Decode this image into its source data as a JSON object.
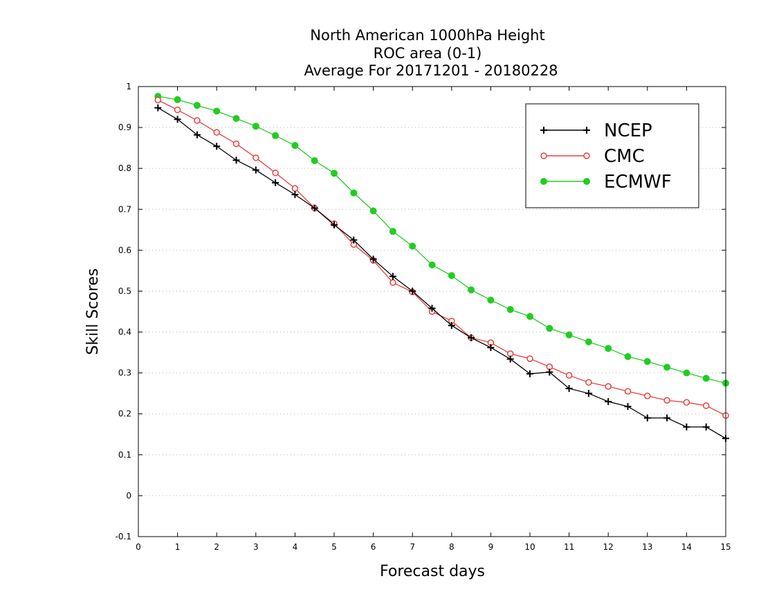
{
  "chart_data": {
    "type": "line",
    "title": [
      "North American 1000hPa Height",
      "ROC area (0-1)",
      "Average For 20171201 - 20180228"
    ],
    "xlabel": "Forecast days",
    "ylabel": "Skill Scores",
    "xlim": [
      0,
      15
    ],
    "ylim": [
      -0.1,
      1
    ],
    "xticks": [
      0,
      1,
      2,
      3,
      4,
      5,
      6,
      7,
      8,
      9,
      10,
      11,
      12,
      13,
      14,
      15
    ],
    "yticks": [
      -0.1,
      0,
      0.1,
      0.2,
      0.3,
      0.4,
      0.5,
      0.6,
      0.7,
      0.8,
      0.9,
      1
    ],
    "ytick_labels": [
      "-0.1",
      "0",
      "0.1",
      "0.2",
      "0.3",
      "0.4",
      "0.5",
      "0.6",
      "0.7",
      "0.8",
      "0.9",
      "1"
    ],
    "grid": "horizontal dotted",
    "legend_position": "top-right",
    "x": [
      0.5,
      1,
      1.5,
      2,
      2.5,
      3,
      3.5,
      4,
      4.5,
      5,
      5.5,
      6,
      6.5,
      7,
      7.5,
      8,
      8.5,
      9,
      9.5,
      10,
      10.5,
      11,
      11.5,
      12,
      12.5,
      13,
      13.5,
      14,
      14.5,
      15
    ],
    "series": [
      {
        "name": "NCEP",
        "color": "#000000",
        "marker": "plus",
        "values": [
          0.948,
          0.92,
          0.882,
          0.854,
          0.82,
          0.796,
          0.765,
          0.736,
          0.703,
          0.662,
          0.625,
          0.578,
          0.536,
          0.5,
          0.458,
          0.416,
          0.386,
          0.362,
          0.334,
          0.298,
          0.302,
          0.262,
          0.25,
          0.23,
          0.218,
          0.19,
          0.19,
          0.168,
          0.168,
          0.14
        ]
      },
      {
        "name": "CMC",
        "color": "#e8403c",
        "marker": "open-circle",
        "values": [
          0.967,
          0.943,
          0.917,
          0.888,
          0.86,
          0.826,
          0.789,
          0.751,
          0.703,
          0.665,
          0.614,
          0.575,
          0.521,
          0.498,
          0.45,
          0.427,
          0.386,
          0.374,
          0.347,
          0.335,
          0.315,
          0.294,
          0.277,
          0.267,
          0.255,
          0.244,
          0.233,
          0.228,
          0.22,
          0.196
        ]
      },
      {
        "name": "ECMWF",
        "color": "#22cc22",
        "marker": "filled-circle",
        "values": [
          0.976,
          0.968,
          0.954,
          0.94,
          0.922,
          0.903,
          0.88,
          0.856,
          0.819,
          0.788,
          0.74,
          0.696,
          0.646,
          0.61,
          0.564,
          0.538,
          0.503,
          0.478,
          0.455,
          0.438,
          0.409,
          0.393,
          0.376,
          0.36,
          0.34,
          0.328,
          0.314,
          0.3,
          0.287,
          0.275
        ]
      }
    ]
  }
}
